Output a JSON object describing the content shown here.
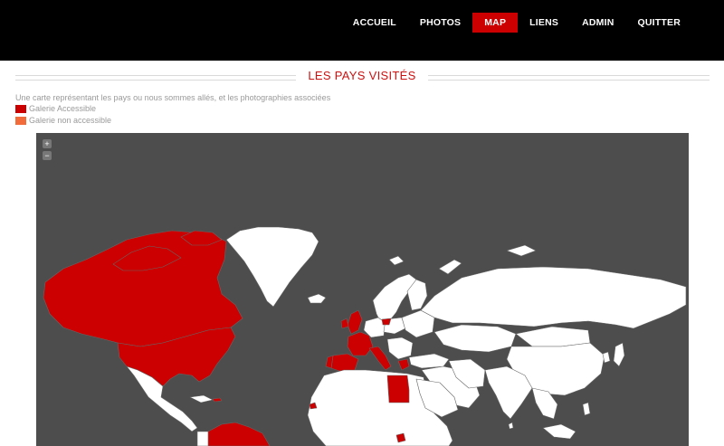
{
  "nav": {
    "items": [
      {
        "label": "ACCUEIL",
        "active": false
      },
      {
        "label": "PHOTOS",
        "active": false
      },
      {
        "label": "MAP",
        "active": true
      },
      {
        "label": "LIENS",
        "active": false
      },
      {
        "label": "ADMIN",
        "active": false
      },
      {
        "label": "QUITTER",
        "active": false
      }
    ]
  },
  "page": {
    "title": "LES PAYS VISITÉS",
    "description": "Une carte représentant les pays ou nous sommes allés, et les photographies associées"
  },
  "legend": [
    {
      "label": "Galerie Accessible",
      "color": "#cc0000"
    },
    {
      "label": "Galerie non accessible",
      "color": "#f26b3a"
    }
  ],
  "map": {
    "zoom_in_label": "+",
    "zoom_out_label": "−",
    "colors": {
      "background": "#4d4d4d",
      "land": "#ffffff",
      "visited": "#cc0000",
      "border": "#666666"
    }
  }
}
